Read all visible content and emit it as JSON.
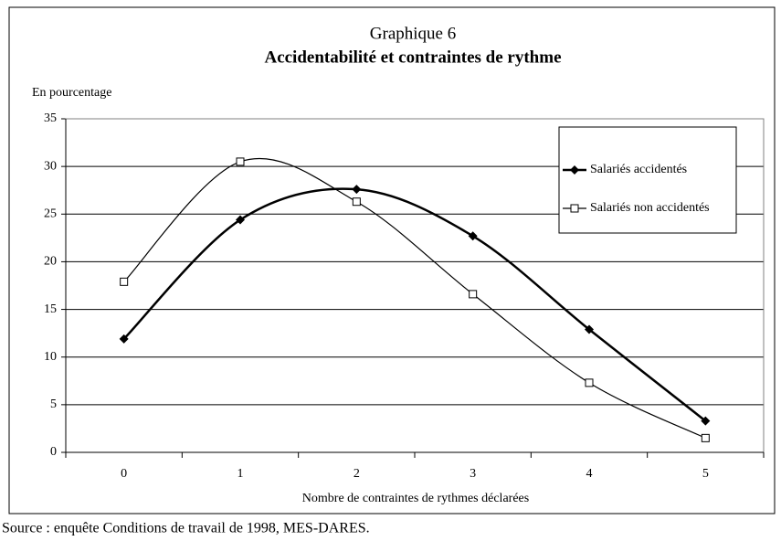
{
  "chart_data": {
    "type": "line",
    "title": "Graphique 6",
    "subtitle": "Accidentabilité et contraintes de rythme",
    "y_label": "En pourcentage",
    "x_label": "Nombre de contraintes de rythmes déclarées",
    "source": "Source : enquête Conditions de travail de 1998, MES-DARES.",
    "categories": [
      "0",
      "1",
      "2",
      "3",
      "4",
      "5"
    ],
    "series": [
      {
        "name": "Salariés accidentés",
        "color": "#000000",
        "marker": "diamond",
        "values": [
          11.9,
          24.4,
          27.6,
          22.7,
          12.9,
          3.3
        ]
      },
      {
        "name": "Salariés non accidentés",
        "color": "#000000",
        "marker": "square",
        "values": [
          17.9,
          30.5,
          26.3,
          16.6,
          7.3,
          1.5
        ]
      }
    ],
    "ylim": [
      0,
      35
    ],
    "yticks": [
      0,
      5,
      10,
      15,
      20,
      25,
      30,
      35
    ],
    "grid": true,
    "legend": "upper right",
    "smooth": true
  }
}
